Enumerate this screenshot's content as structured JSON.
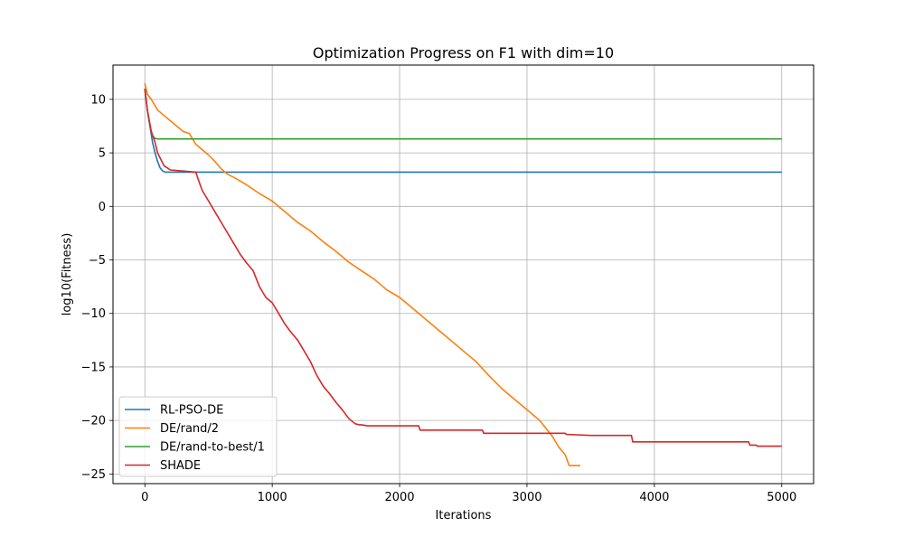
{
  "chart_data": {
    "type": "line",
    "title": "Optimization Progress on F1 with dim=10",
    "xlabel": "Iterations",
    "ylabel": "log10(Fitness)",
    "xlim": [
      -250,
      5250
    ],
    "ylim": [
      -25.9,
      13.2
    ],
    "xticks": [
      0,
      1000,
      2000,
      3000,
      4000,
      5000
    ],
    "yticks": [
      10,
      5,
      0,
      -5,
      -10,
      -15,
      -20,
      -25
    ],
    "grid": true,
    "legend_position": "lower-left",
    "series": [
      {
        "name": "RL-PSO-DE",
        "color": "#1f77b4",
        "x": [
          0,
          20,
          40,
          60,
          80,
          100,
          120,
          140,
          160,
          200,
          300,
          500,
          1000,
          2000,
          3000,
          4000,
          5000
        ],
        "y": [
          11.0,
          9.0,
          7.5,
          6.0,
          5.0,
          4.2,
          3.6,
          3.3,
          3.2,
          3.2,
          3.2,
          3.2,
          3.2,
          3.2,
          3.2,
          3.2,
          3.2
        ]
      },
      {
        "name": "DE/rand/2",
        "color": "#ff7f0e",
        "x": [
          0,
          20,
          50,
          100,
          150,
          200,
          250,
          300,
          350,
          400,
          450,
          500,
          550,
          600,
          650,
          700,
          800,
          900,
          1000,
          1100,
          1200,
          1300,
          1400,
          1500,
          1600,
          1700,
          1800,
          1900,
          2000,
          2100,
          2200,
          2300,
          2400,
          2500,
          2600,
          2700,
          2800,
          2900,
          3000,
          3100,
          3200,
          3250,
          3300,
          3330,
          3340,
          3420
        ],
        "y": [
          11.5,
          10.5,
          10.0,
          9.0,
          8.5,
          8.0,
          7.5,
          7.0,
          6.8,
          5.8,
          5.3,
          4.8,
          4.2,
          3.5,
          3.0,
          2.7,
          2.0,
          1.2,
          0.5,
          -0.5,
          -1.5,
          -2.3,
          -3.3,
          -4.2,
          -5.2,
          -6.0,
          -6.8,
          -7.8,
          -8.5,
          -9.5,
          -10.5,
          -11.5,
          -12.5,
          -13.5,
          -14.5,
          -15.8,
          -17.0,
          -18.0,
          -19.0,
          -20.0,
          -21.5,
          -22.5,
          -23.2,
          -24.2,
          -24.2,
          -24.2
        ]
      },
      {
        "name": "DE/rand-to-best/1",
        "color": "#2ca02c",
        "x": [
          0,
          20,
          40,
          60,
          80,
          100,
          5000
        ],
        "y": [
          11.0,
          9.0,
          7.5,
          6.6,
          6.35,
          6.3,
          6.3
        ]
      },
      {
        "name": "SHADE",
        "color": "#d62728",
        "x": [
          0,
          20,
          50,
          80,
          100,
          150,
          200,
          300,
          400,
          420,
          450,
          500,
          550,
          600,
          650,
          700,
          750,
          800,
          850,
          900,
          950,
          1000,
          1050,
          1100,
          1150,
          1200,
          1250,
          1300,
          1350,
          1400,
          1450,
          1500,
          1550,
          1600,
          1650,
          1680,
          1700,
          1750,
          2000,
          2150,
          2160,
          2500,
          2650,
          2660,
          3000,
          3300,
          3310,
          3500,
          3820,
          3830,
          4000,
          4500,
          4740,
          4750,
          4800,
          4810,
          5000
        ],
        "y": [
          11.0,
          9.0,
          7.0,
          6.0,
          5.0,
          3.8,
          3.4,
          3.3,
          3.2,
          2.5,
          1.5,
          0.5,
          -0.5,
          -1.5,
          -2.5,
          -3.5,
          -4.5,
          -5.3,
          -6.0,
          -7.5,
          -8.5,
          -9.0,
          -10.0,
          -11.0,
          -11.8,
          -12.5,
          -13.5,
          -14.5,
          -15.8,
          -16.8,
          -17.5,
          -18.3,
          -19.0,
          -19.8,
          -20.3,
          -20.4,
          -20.4,
          -20.5,
          -20.5,
          -20.5,
          -20.9,
          -20.9,
          -20.9,
          -21.2,
          -21.2,
          -21.2,
          -21.3,
          -21.4,
          -21.4,
          -22.0,
          -22.0,
          -22.0,
          -22.0,
          -22.3,
          -22.3,
          -22.4,
          -22.4
        ]
      }
    ]
  }
}
